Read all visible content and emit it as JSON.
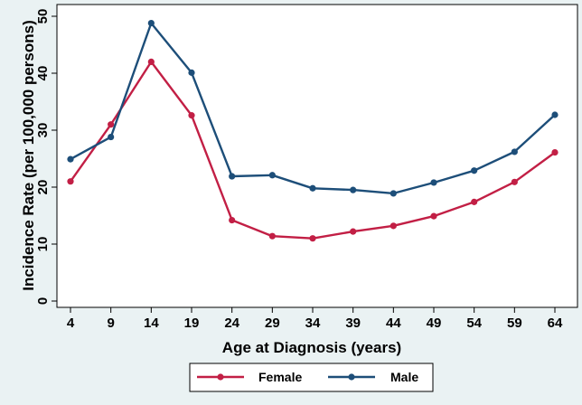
{
  "chart_data": {
    "type": "line",
    "xlabel": "Age at Diagnosis (years)",
    "ylabel": "Incidence Rate (per 100,000 persons)",
    "x": [
      4,
      9,
      14,
      19,
      24,
      29,
      34,
      39,
      44,
      49,
      54,
      59,
      64
    ],
    "x_ticks": [
      "4",
      "9",
      "14",
      "19",
      "24",
      "29",
      "34",
      "39",
      "44",
      "49",
      "54",
      "59",
      "64"
    ],
    "y_ticks": [
      "0",
      "10",
      "20",
      "30",
      "40",
      "50"
    ],
    "ylim": [
      0,
      50
    ],
    "grid": false,
    "legend_position": "bottom",
    "series": [
      {
        "name": "Female",
        "color": "#c21f45",
        "values": [
          21.0,
          31.0,
          42.0,
          32.6,
          14.2,
          11.4,
          11.0,
          12.2,
          13.2,
          14.9,
          17.4,
          20.9,
          26.1
        ]
      },
      {
        "name": "Male",
        "color": "#1d4e79",
        "values": [
          24.9,
          28.8,
          48.8,
          40.1,
          21.9,
          22.1,
          19.8,
          19.5,
          18.9,
          20.8,
          22.9,
          26.2,
          32.7
        ]
      }
    ]
  }
}
